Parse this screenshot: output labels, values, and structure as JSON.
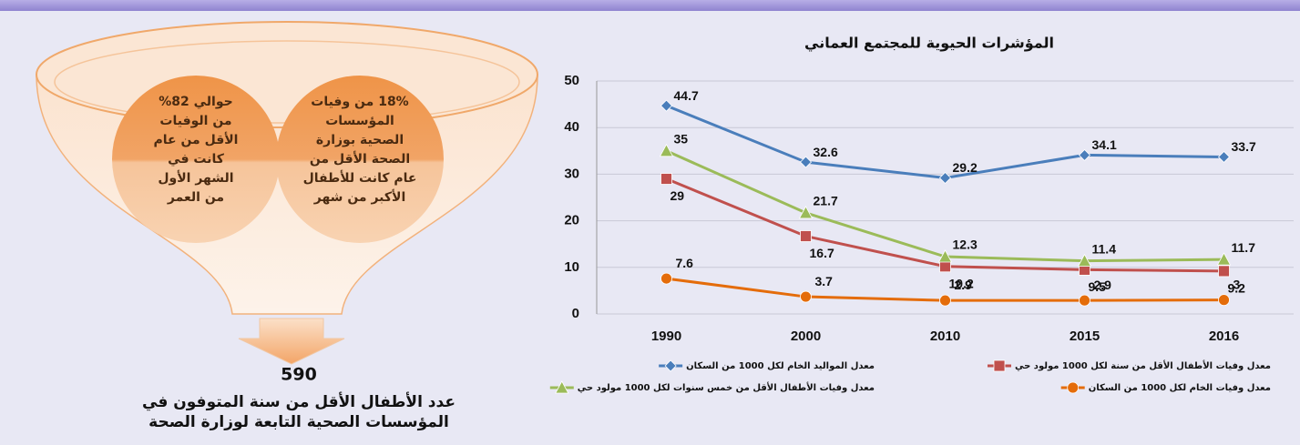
{
  "chart_data": {
    "type": "line",
    "title": "المؤشرات الحيوية للمجتمع العماني",
    "categories": [
      "1990",
      "2000",
      "2010",
      "2015",
      "2016"
    ],
    "series": [
      {
        "name": "معدل المواليد الخام لكل 1000 من السكان",
        "color": "#4a7ebb",
        "marker": "diamond",
        "values": [
          44.7,
          32.6,
          29.2,
          34.1,
          33.7
        ]
      },
      {
        "name": "معدل وفيات الأطفال الأقل من سنة لكل 1000 مولود حي",
        "color": "#c0504d",
        "marker": "square",
        "values": [
          29,
          16.7,
          10.2,
          9.5,
          9.2
        ]
      },
      {
        "name": "معدل وفيات الأطفال الأقل من خمس سنوات لكل 1000 مولود حي",
        "color": "#9bbb59",
        "marker": "triangle",
        "values": [
          35,
          21.7,
          12.3,
          11.4,
          11.7
        ]
      },
      {
        "name": "معدل وفيات الخام لكل 1000 من السكان",
        "color": "#e46c0a",
        "marker": "circle",
        "values": [
          7.6,
          3.7,
          2.9,
          2.9,
          3
        ]
      }
    ],
    "ylim": [
      0,
      50
    ],
    "yticks": [
      0,
      10,
      20,
      30,
      40,
      50
    ],
    "grid": true
  },
  "funnel": {
    "left_circle": [
      "حوالي 82%",
      "من الوفيات",
      "الأقل من عام",
      "كانت في",
      "الشهر الأول",
      "من العمر"
    ],
    "right_circle": [
      "18% من وفيات",
      "المؤسسات",
      "الصحية بوزارة",
      "الصحة الأقل من",
      "عام كانت للأطفال",
      "الأكبر من شهر"
    ],
    "total": "590",
    "caption": [
      "عدد الأطفال الأقل من سنة المتوفون في",
      "المؤسسات الصحية التابعة لوزارة الصحة"
    ]
  }
}
